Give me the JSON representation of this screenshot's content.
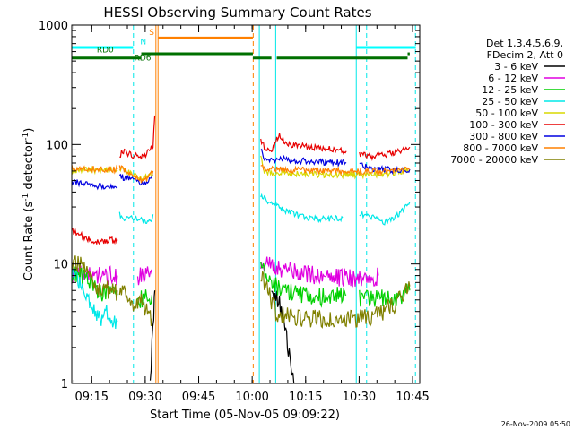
{
  "chart_data": {
    "type": "line",
    "title": "HESSI Observing Summary Count Rates",
    "xlabel": "Start Time (05-Nov-05 09:09:22)",
    "ylabel_parts": [
      "Count Rate (s",
      "-1",
      " detector",
      "-1",
      ")"
    ],
    "y_scale": "log",
    "ylim": [
      1,
      1000
    ],
    "xlim_minutes": [
      0,
      97.6
    ],
    "x_ticks": [
      {
        "label": "09:15",
        "m": 5.6
      },
      {
        "label": "09:30",
        "m": 20.6
      },
      {
        "label": "09:45",
        "m": 35.6
      },
      {
        "label": "10:00",
        "m": 50.6
      },
      {
        "label": "10:15",
        "m": 65.6
      },
      {
        "label": "10:30",
        "m": 80.6
      },
      {
        "label": "10:45",
        "m": 95.6
      }
    ],
    "y_ticks": [
      {
        "label": "1",
        "v": 1
      },
      {
        "label": "10",
        "v": 10
      },
      {
        "label": "100",
        "v": 100
      },
      {
        "label": "1000",
        "v": 1000
      }
    ],
    "legend_title": [
      "Det 1,3,4,5,6,9,",
      "FDecim 2, Att 0"
    ],
    "legend_position": "right",
    "series": [
      {
        "name": "3 - 6 keV",
        "color": "#000000",
        "segments": [
          [
            [
              22.0,
              1
            ],
            [
              22.5,
              2.2
            ],
            [
              23.0,
              3.5
            ],
            [
              23.3,
              6.0
            ]
          ],
          [
            [
              56.0,
              6.0
            ],
            [
              58.5,
              4.5
            ],
            [
              59.8,
              3.2
            ],
            [
              60.5,
              2.0
            ],
            [
              61.5,
              1.5
            ],
            [
              62.3,
              1
            ]
          ]
        ]
      },
      {
        "name": "6 - 12 keV",
        "color": "#e000e0",
        "segments": [
          [
            [
              0,
              8.3
            ],
            [
              4,
              8.2
            ],
            [
              9,
              8.1
            ],
            [
              12.8,
              8.0
            ]
          ],
          [
            [
              18.5,
              8.0
            ],
            [
              20,
              8.0
            ],
            [
              22.5,
              8.2
            ]
          ],
          [
            [
              53,
              10.5
            ],
            [
              55,
              10.0
            ],
            [
              60,
              9.0
            ],
            [
              65,
              8.5
            ],
            [
              70,
              8.0
            ],
            [
              74,
              7.8
            ],
            [
              80,
              7.8
            ],
            [
              84,
              7.8
            ],
            [
              86,
              8.0
            ]
          ]
        ]
      },
      {
        "name": "12 - 25 keV",
        "color": "#00d000",
        "segments": [
          [
            [
              0,
              8.5
            ],
            [
              4,
              7.5
            ],
            [
              8,
              5.8
            ],
            [
              12.8,
              5.5
            ]
          ],
          [
            [
              18.5,
              5.0
            ],
            [
              20,
              5.2
            ],
            [
              22.5,
              5.5
            ]
          ],
          [
            [
              53,
              10.0
            ],
            [
              55,
              8.0
            ],
            [
              57.5,
              6.5
            ],
            [
              60,
              6.0
            ],
            [
              65,
              5.6
            ],
            [
              70,
              5.4
            ],
            [
              74,
              5.5
            ],
            [
              77,
              5.5
            ]
          ],
          [
            [
              80.7,
              5.2
            ],
            [
              84,
              5.2
            ],
            [
              88,
              5.3
            ],
            [
              92,
              5.3
            ],
            [
              94.8,
              6.0
            ]
          ]
        ]
      },
      {
        "name": "25 - 50 keV",
        "color": "#00e8e8",
        "segments": [
          [
            [
              0,
              8.2
            ],
            [
              2,
              7.0
            ],
            [
              4,
              6.0
            ],
            [
              6,
              4.5
            ],
            [
              8,
              3.5
            ],
            [
              10,
              4.0
            ],
            [
              12,
              3.3
            ],
            [
              12.8,
              3.3
            ]
          ],
          [
            [
              13.4,
              26
            ],
            [
              15,
              24
            ],
            [
              18,
              24
            ],
            [
              19.5,
              24
            ],
            [
              21,
              22
            ],
            [
              22,
              23
            ],
            [
              22.8,
              26
            ]
          ],
          [
            [
              53,
              36
            ],
            [
              55,
              34
            ],
            [
              58,
              30
            ],
            [
              61,
              27.5
            ],
            [
              64,
              25
            ],
            [
              68,
              24
            ],
            [
              72,
              24
            ],
            [
              76,
              24.5
            ]
          ],
          [
            [
              80.7,
              26
            ],
            [
              84,
              25
            ],
            [
              88,
              22.5
            ],
            [
              90,
              24
            ],
            [
              93,
              28
            ],
            [
              94.8,
              33
            ]
          ]
        ]
      },
      {
        "name": "50 - 100 keV",
        "color": "#d8d800",
        "segments": [
          [
            [
              0,
              61
            ],
            [
              3,
              61
            ],
            [
              6,
              61
            ],
            [
              9,
              61
            ],
            [
              12.8,
              61
            ]
          ],
          [
            [
              13.4,
              63
            ],
            [
              15,
              60
            ],
            [
              17,
              56
            ],
            [
              19.5,
              52
            ],
            [
              21,
              53
            ],
            [
              22.8,
              56
            ]
          ],
          [
            [
              53,
              82
            ],
            [
              54,
              60
            ],
            [
              57,
              58
            ],
            [
              61,
              58
            ],
            [
              66,
              56
            ],
            [
              70,
              56
            ],
            [
              74,
              56
            ],
            [
              80.7,
              56
            ],
            [
              86,
              56
            ],
            [
              90,
              57
            ],
            [
              94.8,
              62
            ]
          ]
        ]
      },
      {
        "name": "100 - 300 keV",
        "color": "#e80000",
        "segments": [
          [
            [
              0,
              19
            ],
            [
              2,
              17.8
            ],
            [
              4,
              16.5
            ],
            [
              6,
              15.5
            ],
            [
              8,
              15.5
            ],
            [
              12.8,
              16
            ]
          ],
          [
            [
              13.4,
              82
            ],
            [
              14.5,
              88
            ],
            [
              16,
              84
            ],
            [
              18,
              80
            ],
            [
              19.5,
              78
            ],
            [
              21,
              85
            ],
            [
              22.8,
              96
            ],
            [
              23.3,
              175
            ]
          ],
          [
            [
              53,
              110
            ],
            [
              54,
              95
            ],
            [
              56,
              85
            ],
            [
              57.5,
              115
            ],
            [
              58.5,
              118
            ],
            [
              60,
              104
            ],
            [
              63,
              98
            ],
            [
              67,
              96
            ],
            [
              72,
              92
            ],
            [
              77,
              88
            ]
          ],
          [
            [
              80.7,
              84
            ],
            [
              84,
              80
            ],
            [
              88,
              82
            ],
            [
              92,
              88
            ],
            [
              94.8,
              95
            ]
          ]
        ]
      },
      {
        "name": "300 - 800 keV",
        "color": "#0000e0",
        "segments": [
          [
            [
              0,
              49
            ],
            [
              3,
              48
            ],
            [
              6,
              46
            ],
            [
              9,
              44
            ],
            [
              12.8,
              44
            ]
          ],
          [
            [
              13.4,
              54
            ],
            [
              15,
              53
            ],
            [
              17,
              51
            ],
            [
              19.5,
              46
            ],
            [
              21,
              50
            ],
            [
              22.8,
              55
            ]
          ],
          [
            [
              53,
              92
            ],
            [
              54,
              79
            ],
            [
              56,
              74
            ],
            [
              59,
              76
            ],
            [
              63,
              74
            ],
            [
              67,
              72
            ],
            [
              72,
              71
            ],
            [
              77,
              70
            ]
          ],
          [
            [
              80.7,
              68
            ],
            [
              84,
              63
            ],
            [
              88,
              62
            ],
            [
              92,
              60
            ],
            [
              94.8,
              62
            ]
          ]
        ]
      },
      {
        "name": "800 - 7000 keV",
        "color": "#ff8000",
        "segments": [
          [
            [
              0,
              64
            ],
            [
              3,
              64
            ],
            [
              6,
              63
            ],
            [
              9,
              62
            ],
            [
              12.8,
              62
            ]
          ],
          [
            [
              13.4,
              64
            ],
            [
              15,
              60
            ],
            [
              17,
              57
            ],
            [
              19.5,
              50
            ],
            [
              21,
              52
            ],
            [
              22.8,
              60
            ]
          ],
          [
            [
              53,
              64
            ],
            [
              56,
              62
            ],
            [
              60,
              62
            ],
            [
              65,
              61
            ],
            [
              70,
              61
            ],
            [
              75,
              60
            ],
            [
              80,
              60
            ],
            [
              85,
              60
            ],
            [
              90,
              60
            ],
            [
              94.8,
              62
            ]
          ]
        ]
      },
      {
        "name": "7000 - 20000 keV",
        "color": "#808000",
        "segments": [
          [
            [
              0,
              10.5
            ],
            [
              3,
              9.8
            ],
            [
              5,
              7.8
            ],
            [
              7,
              6.5
            ],
            [
              9,
              6.3
            ],
            [
              12,
              6.0
            ],
            [
              12.8,
              6.0
            ]
          ],
          [
            [
              13.4,
              6.2
            ],
            [
              15,
              5.5
            ],
            [
              17,
              4.5
            ],
            [
              19.5,
              5.0
            ],
            [
              21,
              4.0
            ],
            [
              22.5,
              3.5
            ]
          ],
          [
            [
              53,
              8.5
            ],
            [
              55,
              6.0
            ],
            [
              57.5,
              3.8
            ],
            [
              60,
              3.7
            ],
            [
              65,
              3.5
            ],
            [
              70,
              3.5
            ],
            [
              75,
              3.5
            ],
            [
              80,
              3.5
            ],
            [
              85,
              3.7
            ],
            [
              90,
              4.5
            ],
            [
              94.8,
              6.5
            ]
          ]
        ]
      }
    ],
    "state_bars": [
      {
        "name": "N",
        "color": "#00ffff",
        "value": 650,
        "ranges": [
          [
            0,
            17.2
          ],
          [
            79.8,
            96.5
          ]
        ]
      },
      {
        "name": "S",
        "color": "#ff8000",
        "value": 780,
        "ranges": [
          [
            24.3,
            50.8
          ]
        ]
      },
      {
        "name": "RD0",
        "color": "#007000",
        "value": 530,
        "ranges": [
          [
            0,
            19.5
          ],
          [
            50.8,
            56
          ],
          [
            57.5,
            94.2
          ]
        ]
      },
      {
        "name": "RD6",
        "color": "#007000",
        "value": 575,
        "ranges": [
          [
            19.5,
            50.8
          ],
          [
            94.2,
            94.8
          ]
        ]
      }
    ],
    "vlines": [
      {
        "m": 0.0,
        "color": "#00e8e8",
        "dash": false
      },
      {
        "m": 17.3,
        "color": "#00e8e8",
        "dash": true
      },
      {
        "m": 23.6,
        "color": "#ff8000",
        "dash": false
      },
      {
        "m": 24.2,
        "color": "#ff8000",
        "dash": false
      },
      {
        "m": 50.9,
        "color": "#ff8000",
        "dash": true
      },
      {
        "m": 52.6,
        "color": "#00e8e8",
        "dash": false
      },
      {
        "m": 57.2,
        "color": "#00e8e8",
        "dash": false
      },
      {
        "m": 79.8,
        "color": "#00e8e8",
        "dash": false
      },
      {
        "m": 82.7,
        "color": "#00e8e8",
        "dash": true
      },
      {
        "m": 96.4,
        "color": "#00e8e8",
        "dash": true
      }
    ],
    "footer": "26-Nov-2009 05:50"
  }
}
